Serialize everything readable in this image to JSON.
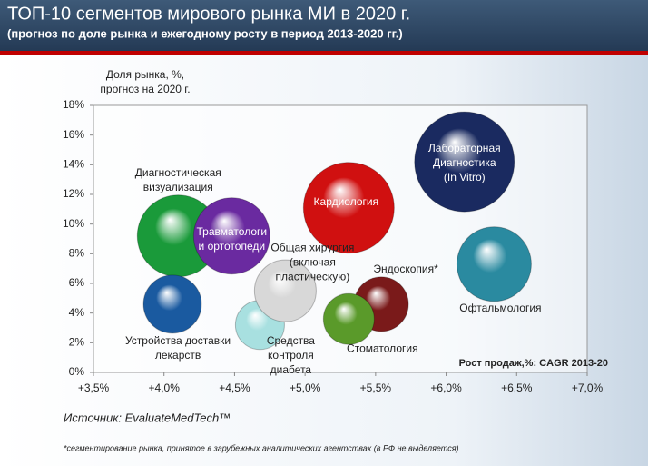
{
  "chart_data": {
    "type": "bubble",
    "title": "ТОП-10 сегментов мирового рынка МИ в 2020 г.",
    "subtitle": "(прогноз по доле рынка и ежегодному росту в период 2013-2020 гг.)",
    "y_label": [
      "Доля рынка, %,",
      "прогноз на 2020 г."
    ],
    "x_label": "Рост продаж,%: CAGR 2013-20",
    "source": "Источник: EvaluateMedTech™",
    "footnote": "*сегментирование рынка, принятое в зарубежных аналитических агентствах (в РФ не выделяется)",
    "xlim": [
      3.5,
      7.0
    ],
    "xticks": [
      {
        "value": 3.5,
        "label": "+3,5%"
      },
      {
        "value": 4.0,
        "label": "+4,0%"
      },
      {
        "value": 4.5,
        "label": "+4,5%"
      },
      {
        "value": 5.0,
        "label": "+5,0%"
      },
      {
        "value": 5.5,
        "label": "+5,5%"
      },
      {
        "value": 6.0,
        "label": "+6,0%"
      },
      {
        "value": 6.5,
        "label": "+6,5%"
      },
      {
        "value": 7.0,
        "label": "+7,0%"
      }
    ],
    "ylim": [
      0,
      18
    ],
    "yticks": [
      {
        "value": 0,
        "label": "0%"
      },
      {
        "value": 2,
        "label": "2%"
      },
      {
        "value": 4,
        "label": "4%"
      },
      {
        "value": 6,
        "label": "6%"
      },
      {
        "value": 8,
        "label": "8%"
      },
      {
        "value": 10,
        "label": "10%"
      },
      {
        "value": 12,
        "label": "12%"
      },
      {
        "value": 14,
        "label": "14%"
      },
      {
        "value": 16,
        "label": "16%"
      },
      {
        "value": 18,
        "label": "18%"
      }
    ],
    "labels": [
      [
        "Диагностическая",
        "визуализация"
      ],
      [
        "Травматологи",
        "и ортотопеди"
      ],
      [
        "Устройства доставки",
        "лекарств"
      ],
      [
        "Средства",
        "контроля",
        "диабета"
      ],
      [
        "Общая хирургия",
        "(включая",
        "пластическую)"
      ],
      [
        "Кардиология"
      ],
      [
        "Лабораторная",
        "Диагностика",
        "(In Vitro)"
      ],
      [
        "Офтальмология"
      ],
      [
        "Эндоскопия*"
      ],
      [
        "Стоматология"
      ]
    ],
    "x": [
      4.1,
      4.48,
      4.06,
      4.68,
      4.86,
      5.31,
      6.13,
      6.34,
      5.54,
      5.31
    ],
    "values": [
      9.2,
      9.2,
      4.6,
      3.2,
      5.5,
      11.1,
      14.2,
      7.3,
      4.6,
      3.6
    ],
    "sizes": [
      45,
      42,
      32,
      27,
      34,
      50,
      55,
      41,
      30,
      28
    ],
    "colors": [
      "#1a9a3a",
      "#6a2aa0",
      "#1a5aa0",
      "#a8e0e0",
      "#d8d8d8",
      "#d01010",
      "#1a2a60",
      "#2a8aa0",
      "#7a1a1a",
      "#5a9a2a"
    ]
  }
}
